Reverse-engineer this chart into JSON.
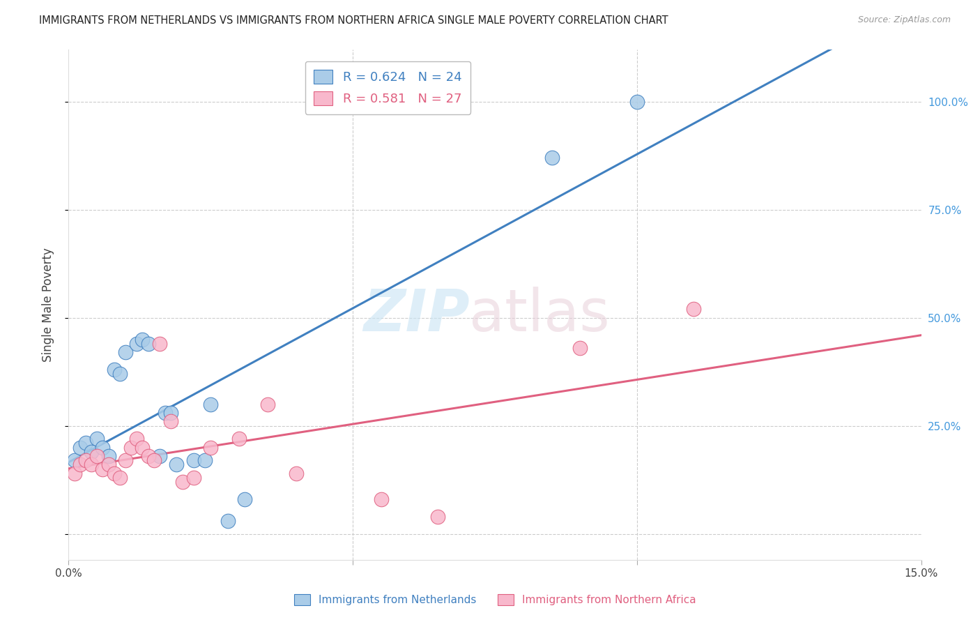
{
  "title": "IMMIGRANTS FROM NETHERLANDS VS IMMIGRANTS FROM NORTHERN AFRICA SINGLE MALE POVERTY CORRELATION CHART",
  "source": "Source: ZipAtlas.com",
  "ylabel": "Single Male Poverty",
  "yticks": [
    0.0,
    0.25,
    0.5,
    0.75,
    1.0
  ],
  "ytick_labels": [
    "",
    "25.0%",
    "50.0%",
    "75.0%",
    "100.0%"
  ],
  "xlim": [
    0.0,
    0.15
  ],
  "ylim": [
    -0.06,
    1.12
  ],
  "netherlands_color": "#aacce8",
  "netherlands_line_color": "#4080c0",
  "n_africa_color": "#f8b8cc",
  "n_africa_line_color": "#e06080",
  "netherlands_R": "0.624",
  "netherlands_N": "24",
  "n_africa_R": "0.581",
  "n_africa_N": "27",
  "netherlands_x": [
    0.001,
    0.002,
    0.003,
    0.004,
    0.005,
    0.006,
    0.007,
    0.008,
    0.009,
    0.01,
    0.012,
    0.013,
    0.014,
    0.016,
    0.017,
    0.018,
    0.019,
    0.022,
    0.024,
    0.025,
    0.028,
    0.031,
    0.085,
    0.1
  ],
  "netherlands_y": [
    0.17,
    0.2,
    0.21,
    0.19,
    0.22,
    0.2,
    0.18,
    0.38,
    0.37,
    0.42,
    0.44,
    0.45,
    0.44,
    0.18,
    0.28,
    0.28,
    0.16,
    0.17,
    0.17,
    0.3,
    0.03,
    0.08,
    0.87,
    1.0
  ],
  "n_africa_x": [
    0.001,
    0.002,
    0.003,
    0.004,
    0.005,
    0.006,
    0.007,
    0.008,
    0.009,
    0.01,
    0.011,
    0.012,
    0.013,
    0.014,
    0.015,
    0.016,
    0.018,
    0.02,
    0.022,
    0.025,
    0.03,
    0.035,
    0.04,
    0.055,
    0.065,
    0.09,
    0.11
  ],
  "n_africa_y": [
    0.14,
    0.16,
    0.17,
    0.16,
    0.18,
    0.15,
    0.16,
    0.14,
    0.13,
    0.17,
    0.2,
    0.22,
    0.2,
    0.18,
    0.17,
    0.44,
    0.26,
    0.12,
    0.13,
    0.2,
    0.22,
    0.3,
    0.14,
    0.08,
    0.04,
    0.43,
    0.52
  ]
}
